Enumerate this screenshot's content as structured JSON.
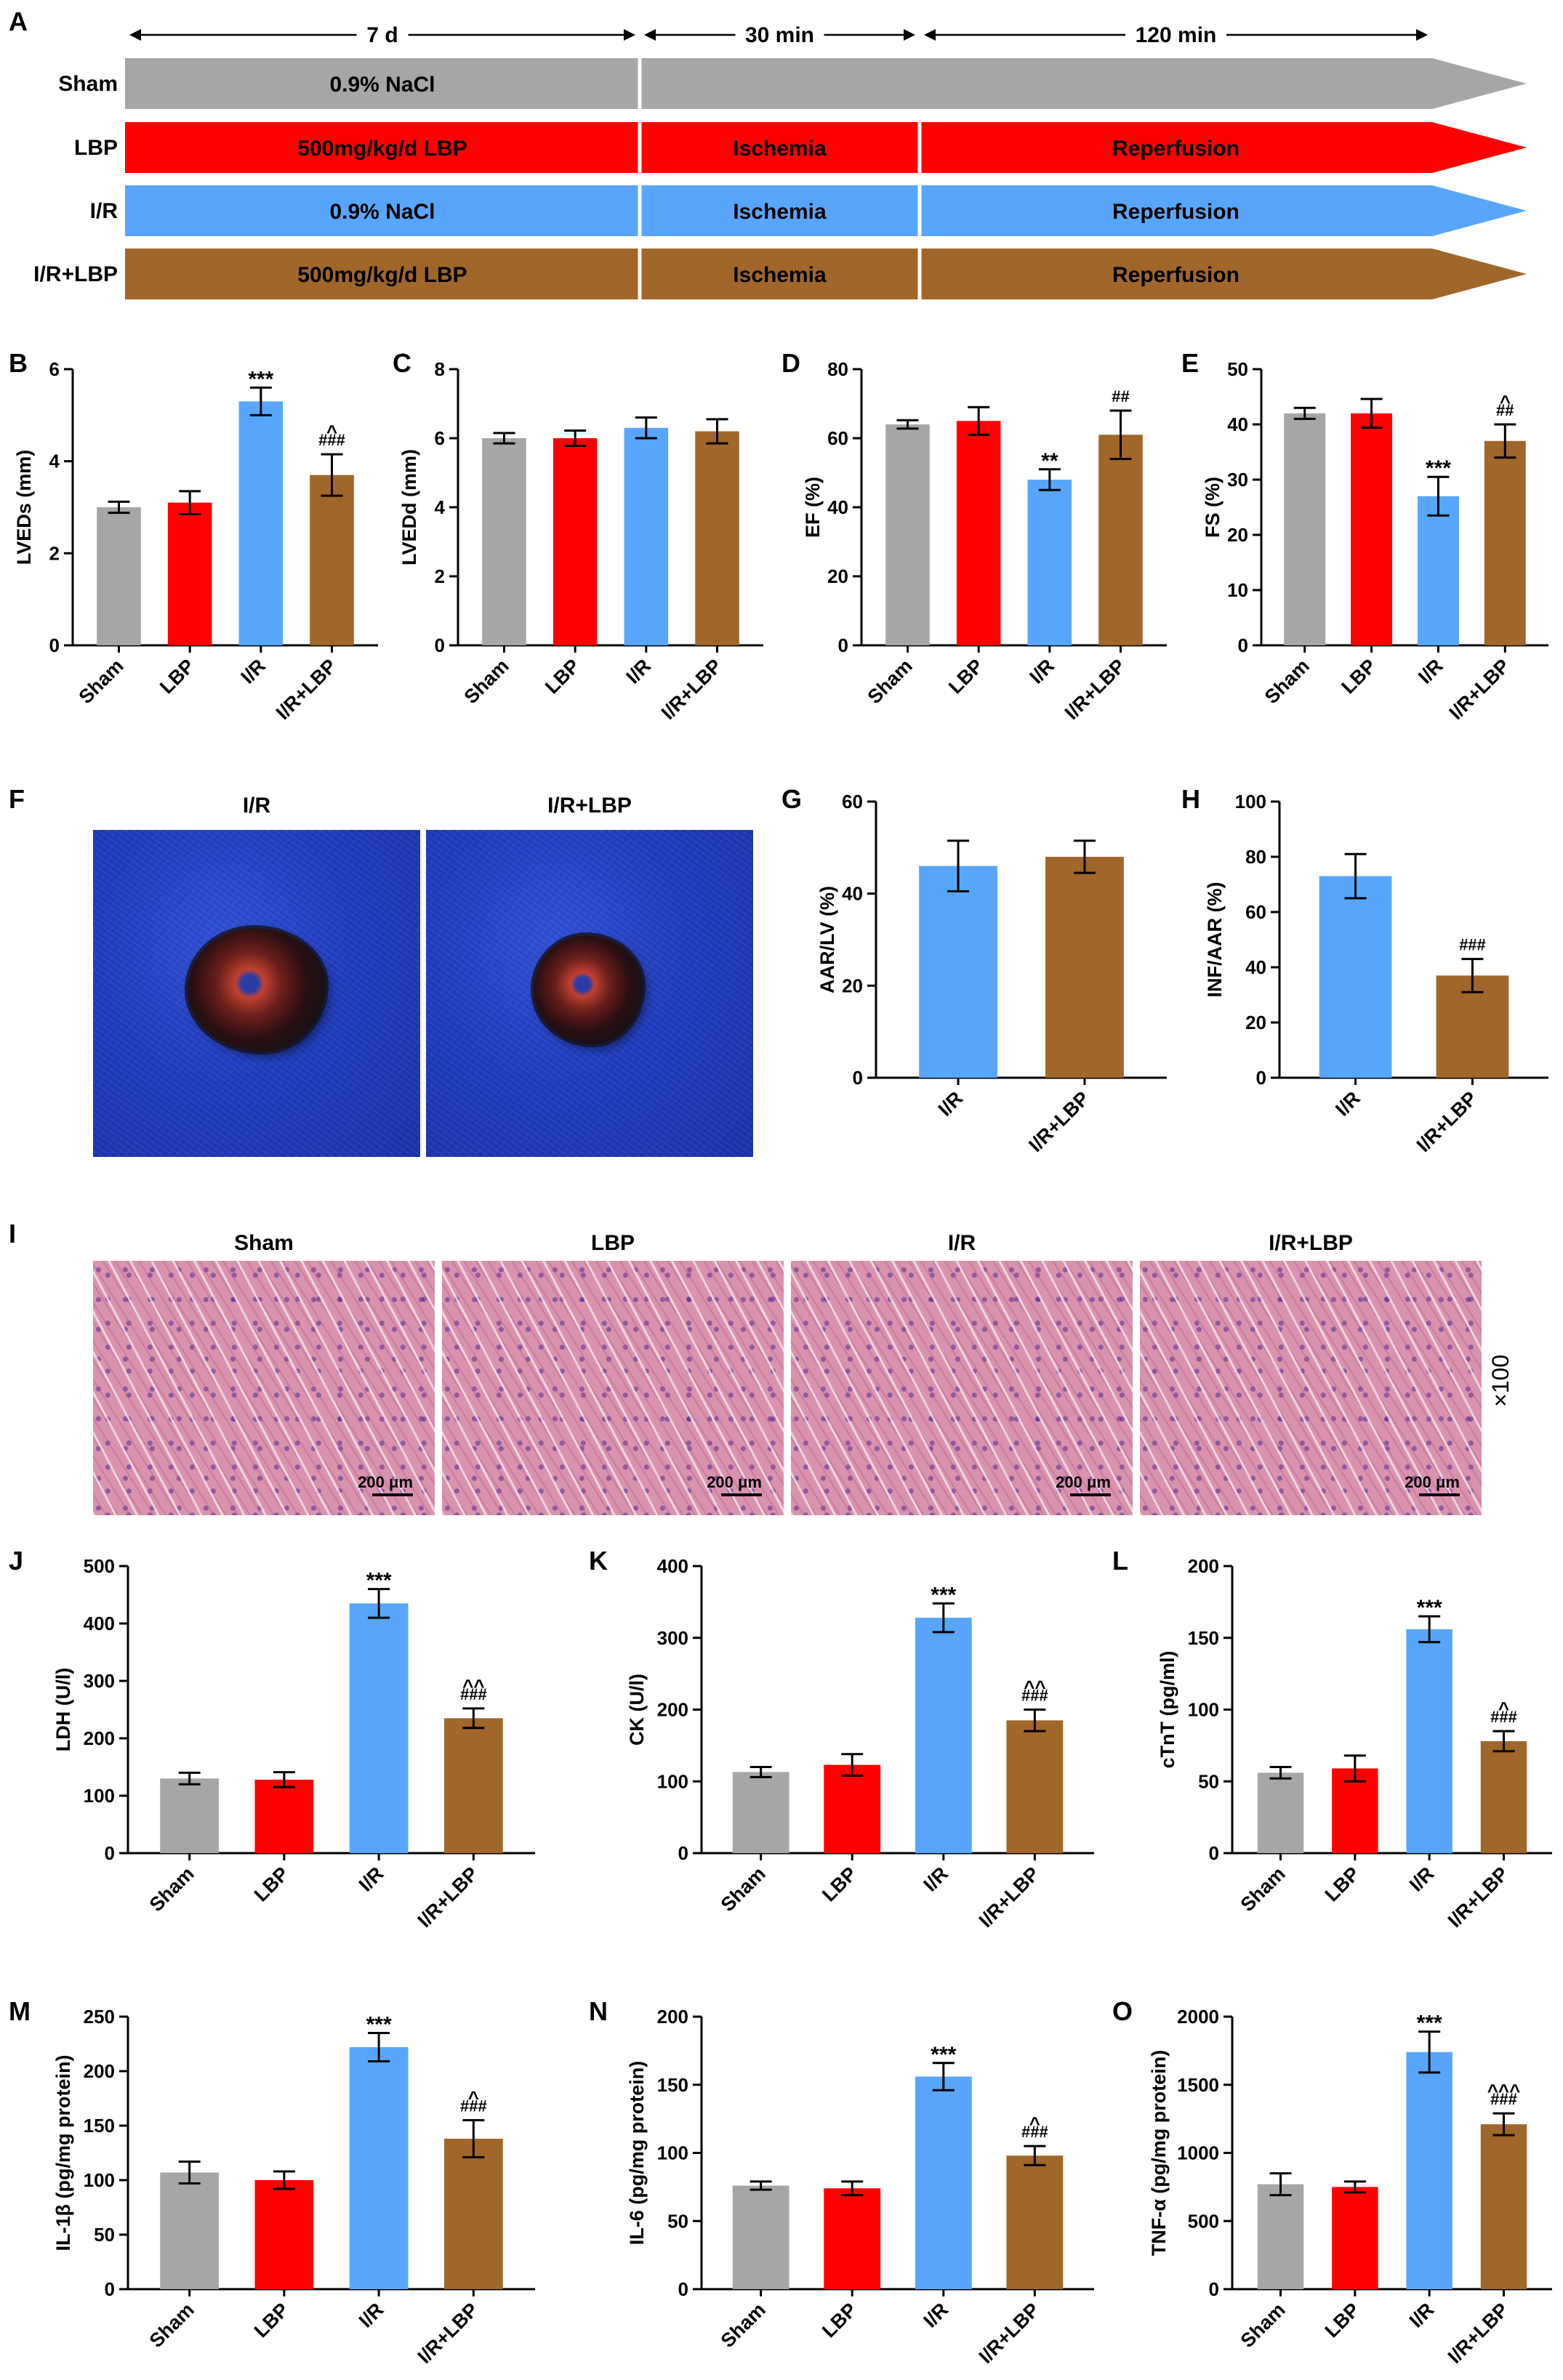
{
  "panel_labels": [
    "A",
    "B",
    "C",
    "D",
    "E",
    "F",
    "G",
    "H",
    "I",
    "J",
    "K",
    "L",
    "M",
    "N",
    "O"
  ],
  "colors": {
    "Sham": "#a6a6a7",
    "LBP": "#ff0000",
    "I/R": "#58a6fb",
    "I/R+LBP": "#a0662a"
  },
  "schematic": {
    "segments": [
      "7 d",
      "30 min",
      "120 min"
    ],
    "rows": [
      {
        "label": "Sham",
        "color": "#a6a6a7",
        "cells": [
          "0.9% NaCl",
          "",
          ""
        ]
      },
      {
        "label": "LBP",
        "color": "#ff0000",
        "cells": [
          "500mg/kg/d LBP",
          "Ischemia",
          "Reperfusion"
        ]
      },
      {
        "label": "I/R",
        "color": "#58a6fb",
        "cells": [
          "0.9% NaCl",
          "Ischemia",
          "Reperfusion"
        ]
      },
      {
        "label": "I/R+LBP",
        "color": "#a0662a",
        "cells": [
          "500mg/kg/d LBP",
          "Ischemia",
          "Reperfusion"
        ]
      }
    ]
  },
  "photos_F": {
    "titles": [
      "I/R",
      "I/R+LBP"
    ]
  },
  "photos_I": {
    "titles": [
      "Sham",
      "LBP",
      "I/R",
      "I/R+LBP"
    ],
    "scale": "200 μm",
    "magnification": "×100"
  },
  "chart_data": [
    {
      "panel": "B",
      "type": "bar",
      "categories": [
        "Sham",
        "LBP",
        "I/R",
        "I/R+LBP"
      ],
      "values": [
        3.0,
        3.1,
        5.3,
        3.7
      ],
      "errors": [
        0.12,
        0.25,
        0.3,
        0.45
      ],
      "ylabel": "LVEDs (mm)",
      "ylim": [
        0,
        6
      ],
      "yticks": [
        0,
        2,
        4,
        6
      ],
      "annotations": [
        [
          "",
          ""
        ],
        [
          "",
          ""
        ],
        [
          "***",
          ""
        ],
        [
          "^",
          "###"
        ]
      ]
    },
    {
      "panel": "C",
      "type": "bar",
      "categories": [
        "Sham",
        "LBP",
        "I/R",
        "I/R+LBP"
      ],
      "values": [
        6.0,
        6.0,
        6.3,
        6.2
      ],
      "errors": [
        0.15,
        0.22,
        0.3,
        0.35
      ],
      "ylabel": "LVEDd (mm)",
      "ylim": [
        0,
        8
      ],
      "yticks": [
        0,
        2,
        4,
        6,
        8
      ],
      "annotations": [
        [
          "",
          ""
        ],
        [
          "",
          ""
        ],
        [
          "",
          ""
        ],
        [
          "",
          ""
        ]
      ]
    },
    {
      "panel": "D",
      "type": "bar",
      "categories": [
        "Sham",
        "LBP",
        "I/R",
        "I/R+LBP"
      ],
      "values": [
        64,
        65,
        48,
        61
      ],
      "errors": [
        1.2,
        4,
        3,
        7
      ],
      "ylabel": "EF (%)",
      "ylim": [
        0,
        80
      ],
      "yticks": [
        0,
        20,
        40,
        60,
        80
      ],
      "annotations": [
        [
          "",
          ""
        ],
        [
          "",
          ""
        ],
        [
          "**",
          ""
        ],
        [
          "",
          "##"
        ]
      ]
    },
    {
      "panel": "E",
      "type": "bar",
      "categories": [
        "Sham",
        "LBP",
        "I/R",
        "I/R+LBP"
      ],
      "values": [
        42,
        42,
        27,
        37
      ],
      "errors": [
        1,
        2.6,
        3.5,
        3
      ],
      "ylabel": "FS (%)",
      "ylim": [
        0,
        50
      ],
      "yticks": [
        0,
        10,
        20,
        30,
        40,
        50
      ],
      "annotations": [
        [
          "",
          ""
        ],
        [
          "",
          ""
        ],
        [
          "***",
          ""
        ],
        [
          "^",
          "##"
        ]
      ]
    },
    {
      "panel": "G",
      "type": "bar",
      "categories": [
        "I/R",
        "I/R+LBP"
      ],
      "values": [
        46,
        48
      ],
      "errors": [
        5.5,
        3.5
      ],
      "ylabel": "AAR/LV (%)",
      "ylim": [
        0,
        60
      ],
      "yticks": [
        0,
        20,
        40,
        60
      ],
      "annotations": [
        [
          "",
          ""
        ],
        [
          "",
          ""
        ]
      ]
    },
    {
      "panel": "H",
      "type": "bar",
      "categories": [
        "I/R",
        "I/R+LBP"
      ],
      "values": [
        73,
        37
      ],
      "errors": [
        8,
        6
      ],
      "ylabel": "INF/AAR (%)",
      "ylim": [
        0,
        100
      ],
      "yticks": [
        0,
        20,
        40,
        60,
        80,
        100
      ],
      "annotations": [
        [
          "",
          ""
        ],
        [
          "",
          "###"
        ]
      ]
    },
    {
      "panel": "J",
      "type": "bar",
      "categories": [
        "Sham",
        "LBP",
        "I/R",
        "I/R+LBP"
      ],
      "values": [
        130,
        128,
        435,
        235
      ],
      "errors": [
        10,
        13,
        25,
        17
      ],
      "ylabel": "LDH (U/l)",
      "ylim": [
        0,
        500
      ],
      "yticks": [
        0,
        100,
        200,
        300,
        400,
        500
      ],
      "annotations": [
        [
          "",
          ""
        ],
        [
          "",
          ""
        ],
        [
          "***",
          ""
        ],
        [
          "^^",
          "###"
        ]
      ]
    },
    {
      "panel": "K",
      "type": "bar",
      "categories": [
        "Sham",
        "LBP",
        "I/R",
        "I/R+LBP"
      ],
      "values": [
        113,
        123,
        328,
        185
      ],
      "errors": [
        7,
        15,
        20,
        15
      ],
      "ylabel": "CK (U/l)",
      "ylim": [
        0,
        400
      ],
      "yticks": [
        0,
        100,
        200,
        300,
        400
      ],
      "annotations": [
        [
          "",
          ""
        ],
        [
          "",
          ""
        ],
        [
          "***",
          ""
        ],
        [
          "^^",
          "###"
        ]
      ]
    },
    {
      "panel": "L",
      "type": "bar",
      "categories": [
        "Sham",
        "LBP",
        "I/R",
        "I/R+LBP"
      ],
      "values": [
        56,
        59,
        156,
        78
      ],
      "errors": [
        4,
        9,
        9,
        7
      ],
      "ylabel": "cTnT (pg/ml)",
      "ylim": [
        0,
        200
      ],
      "yticks": [
        0,
        50,
        100,
        150,
        200
      ],
      "annotations": [
        [
          "",
          ""
        ],
        [
          "",
          ""
        ],
        [
          "***",
          ""
        ],
        [
          "^",
          "###"
        ]
      ]
    },
    {
      "panel": "M",
      "type": "bar",
      "categories": [
        "Sham",
        "LBP",
        "I/R",
        "I/R+LBP"
      ],
      "values": [
        107,
        100,
        222,
        138
      ],
      "errors": [
        10,
        8,
        13,
        17
      ],
      "ylabel": "IL-1β (pg/mg protein)",
      "ylim": [
        0,
        250
      ],
      "yticks": [
        0,
        50,
        100,
        150,
        200,
        250
      ],
      "annotations": [
        [
          "",
          ""
        ],
        [
          "",
          ""
        ],
        [
          "***",
          ""
        ],
        [
          "^",
          "###"
        ]
      ]
    },
    {
      "panel": "N",
      "type": "bar",
      "categories": [
        "Sham",
        "LBP",
        "I/R",
        "I/R+LBP"
      ],
      "values": [
        76,
        74,
        156,
        98
      ],
      "errors": [
        3,
        5,
        10,
        7
      ],
      "ylabel": "IL-6 (pg/mg protein)",
      "ylim": [
        0,
        200
      ],
      "yticks": [
        0,
        50,
        100,
        150,
        200
      ],
      "annotations": [
        [
          "",
          ""
        ],
        [
          "",
          ""
        ],
        [
          "***",
          ""
        ],
        [
          "^",
          "###"
        ]
      ]
    },
    {
      "panel": "O",
      "type": "bar",
      "categories": [
        "Sham",
        "LBP",
        "I/R",
        "I/R+LBP"
      ],
      "values": [
        770,
        750,
        1740,
        1210
      ],
      "errors": [
        80,
        40,
        150,
        80
      ],
      "ylabel": "TNF-α (pg/mg protein)",
      "ylim": [
        0,
        2000
      ],
      "yticks": [
        0,
        500,
        1000,
        1500,
        2000
      ],
      "annotations": [
        [
          "",
          ""
        ],
        [
          "",
          ""
        ],
        [
          "***",
          ""
        ],
        [
          "^^^",
          "###"
        ]
      ]
    }
  ]
}
